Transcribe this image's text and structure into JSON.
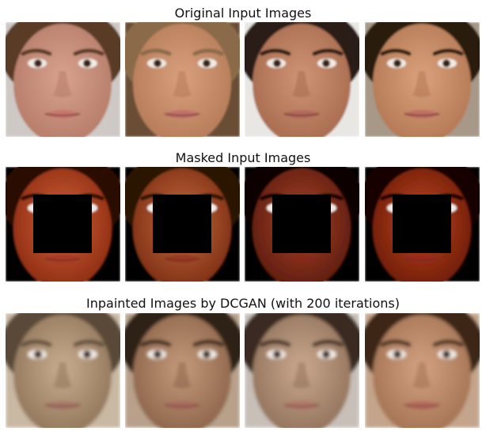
{
  "figure": {
    "rows": [
      {
        "id": "original",
        "title": "Original Input Images",
        "kind": "original",
        "images": [
          {
            "skin": "#d7a290",
            "shade": "#b47a66",
            "hair": "#5a3a26",
            "bg": "#cfc9c6",
            "lip": "#c7776e"
          },
          {
            "skin": "#d9a07d",
            "shade": "#b47a57",
            "hair": "#8a6a48",
            "bg": "#6a4e34",
            "lip": "#c1726a"
          },
          {
            "skin": "#cf9474",
            "shade": "#a6694d",
            "hair": "#2a1a12",
            "bg": "#e9e7e4",
            "lip": "#b36a5c"
          },
          {
            "skin": "#d9a27c",
            "shade": "#b27652",
            "hair": "#2b1a11",
            "bg": "#a89888",
            "lip": "#c06f63"
          }
        ]
      },
      {
        "id": "masked",
        "title": "Masked Input Images",
        "kind": "masked",
        "images": [
          {
            "skin": "#d2613a",
            "shade": "#8a2a10",
            "hair": "#2a0a04",
            "bg": "#000000",
            "lip": "#a83a26"
          },
          {
            "skin": "#c66a3e",
            "shade": "#7a2c12",
            "hair": "#2a1206",
            "bg": "#000000",
            "lip": "#9a3a22"
          },
          {
            "skin": "#a9442a",
            "shade": "#5a1a0c",
            "hair": "#0a0402",
            "bg": "#000000",
            "lip": "#8a2a18"
          },
          {
            "skin": "#c0461f",
            "shade": "#6a1a08",
            "hair": "#140602",
            "bg": "#000000",
            "lip": "#9a2a14"
          }
        ]
      },
      {
        "id": "inpainted",
        "title": "Inpainted Images by DCGAN (with 200 iterations)",
        "kind": "inpainted",
        "images": [
          {
            "skin": "#c8ad8f",
            "shade": "#8e7358",
            "hair": "#5a4a38",
            "bg": "#c9b8a2",
            "lip": "#a87a6a"
          },
          {
            "skin": "#c49a7a",
            "shade": "#8a6248",
            "hair": "#2e2018",
            "bg": "#b8a08a",
            "lip": "#a86e5e"
          },
          {
            "skin": "#c9a88e",
            "shade": "#8f7058",
            "hair": "#3a2a20",
            "bg": "#c8bfb8",
            "lip": "#b07868"
          },
          {
            "skin": "#d2a282",
            "shade": "#a07050",
            "hair": "#3e2818",
            "bg": "#c4a48a",
            "lip": "#b56c5c"
          }
        ]
      }
    ]
  }
}
